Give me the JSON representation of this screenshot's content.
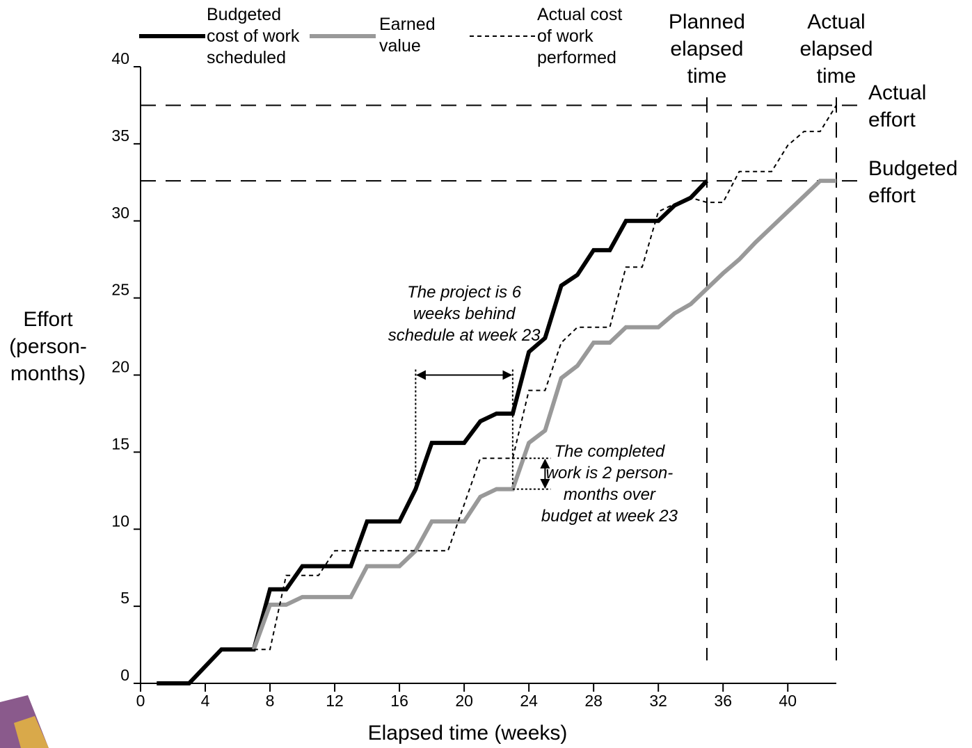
{
  "chart_data": {
    "type": "line",
    "x_label": "Elapsed time (weeks)",
    "y_label": "Effort (person-months)",
    "xlim": [
      0,
      43
    ],
    "ylim": [
      0,
      40
    ],
    "xticks": [
      0,
      4,
      8,
      12,
      16,
      20,
      24,
      28,
      32,
      36,
      40
    ],
    "yticks": [
      0,
      5,
      10,
      15,
      20,
      25,
      30,
      35,
      40
    ],
    "series": [
      {
        "name": "Budgeted cost of work scheduled",
        "color": "#000000",
        "style": "solid",
        "x": [
          1,
          3,
          5,
          7,
          8,
          9,
          10,
          13,
          14,
          16,
          17,
          18,
          20,
          21,
          22,
          23,
          24,
          25,
          26,
          27,
          28,
          29,
          30,
          32,
          33,
          34,
          35
        ],
        "values": [
          0,
          0,
          2.2,
          2.2,
          6.1,
          6.1,
          7.6,
          7.6,
          10.5,
          10.5,
          12.6,
          15.6,
          15.6,
          17,
          17.5,
          17.5,
          21.5,
          22.4,
          25.8,
          26.5,
          28.1,
          28.1,
          30,
          30,
          31,
          31.5,
          32.6
        ]
      },
      {
        "name": "Earned value",
        "color": "#999999",
        "style": "solid",
        "x": [
          7,
          8,
          9,
          10,
          13,
          14,
          16,
          17,
          18,
          20,
          21,
          22,
          23,
          24,
          25,
          26,
          27,
          28,
          29,
          30,
          32,
          33,
          34,
          35,
          36,
          37,
          38,
          39,
          40,
          41,
          42,
          43
        ],
        "values": [
          2.2,
          5.1,
          5.1,
          5.6,
          5.6,
          7.6,
          7.6,
          8.6,
          10.5,
          10.5,
          12.1,
          12.6,
          12.6,
          15.6,
          16.4,
          19.8,
          20.6,
          22.1,
          22.1,
          23.1,
          23.1,
          24,
          24.6,
          25.6,
          26.6,
          27.5,
          28.6,
          29.6,
          30.6,
          31.6,
          32.6,
          32.6
        ]
      },
      {
        "name": "Actual cost of work performed",
        "color": "#000000",
        "style": "dashed",
        "x": [
          7,
          8,
          9,
          11,
          12,
          19,
          21,
          23,
          24,
          25,
          26,
          27,
          29,
          30,
          31,
          32,
          33,
          34,
          35,
          36,
          37,
          39,
          40,
          41,
          42,
          43
        ],
        "values": [
          2.2,
          2.2,
          7,
          7,
          8.6,
          8.6,
          14.6,
          14.6,
          19,
          19,
          22.1,
          23.1,
          23.1,
          27,
          27,
          30.6,
          31.1,
          31.5,
          31.2,
          31.2,
          33.2,
          33.2,
          34.9,
          35.8,
          35.8,
          37.5
        ]
      }
    ],
    "reference_lines": [
      {
        "label": "Actual effort",
        "value": 37.5
      },
      {
        "label": "Budgeted effort",
        "value": 32.6
      }
    ],
    "vertical_lines": [
      {
        "label": "Planned elapsed time",
        "x": 35
      },
      {
        "label": "Actual elapsed time",
        "x": 43
      }
    ],
    "annotations": [
      {
        "text": "The project is 6 weeks behind schedule at week 23",
        "x1": 17,
        "x2": 23,
        "y": 20
      },
      {
        "text": "The completed work is 2 person-months over budget at week 23",
        "x": 25,
        "y1": 12.6,
        "y2": 14.6
      }
    ]
  }
}
